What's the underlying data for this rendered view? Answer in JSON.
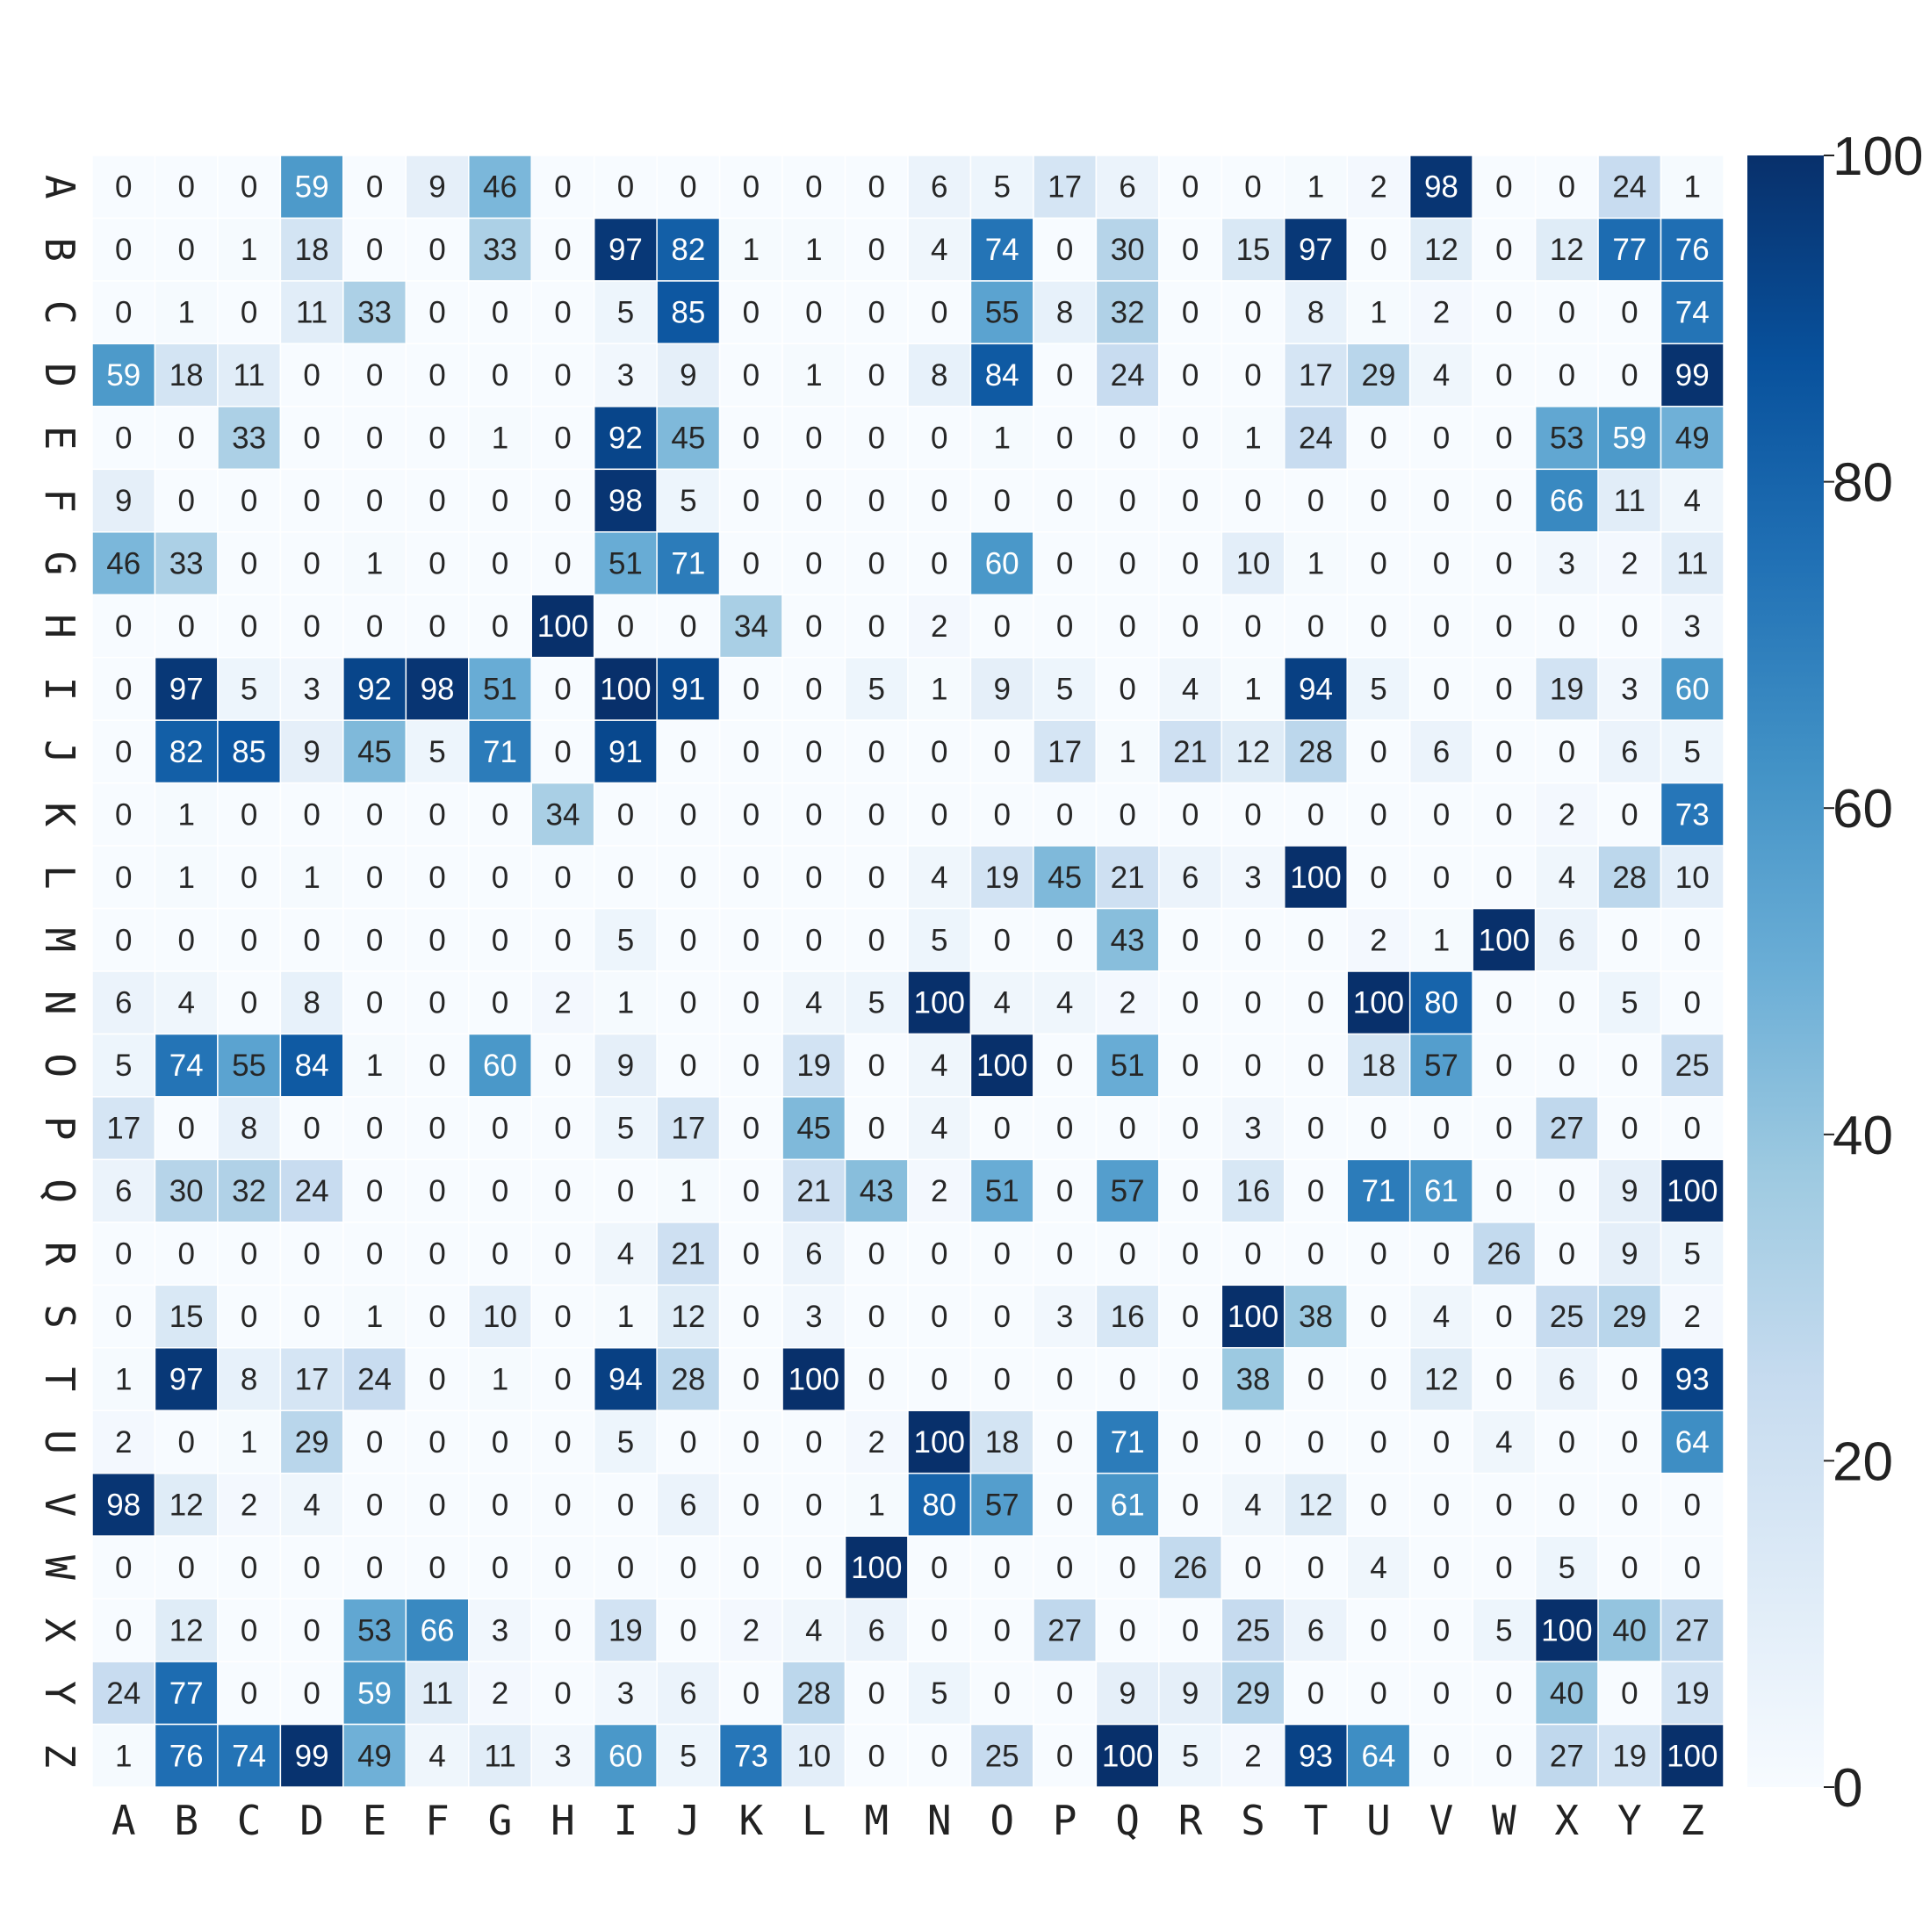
{
  "chart_data": {
    "type": "heatmap",
    "title": "",
    "xlabel": "",
    "ylabel": "",
    "x_categories": [
      "A",
      "B",
      "C",
      "D",
      "E",
      "F",
      "G",
      "H",
      "I",
      "J",
      "K",
      "L",
      "M",
      "N",
      "O",
      "P",
      "Q",
      "R",
      "S",
      "T",
      "U",
      "V",
      "W",
      "X",
      "Y",
      "Z"
    ],
    "y_categories": [
      "A",
      "B",
      "C",
      "D",
      "E",
      "F",
      "G",
      "H",
      "I",
      "J",
      "K",
      "L",
      "M",
      "N",
      "O",
      "P",
      "Q",
      "R",
      "S",
      "T",
      "U",
      "V",
      "W",
      "X",
      "Y",
      "Z"
    ],
    "values": [
      [
        0,
        0,
        0,
        59,
        0,
        9,
        46,
        0,
        0,
        0,
        0,
        0,
        0,
        6,
        5,
        17,
        6,
        0,
        0,
        1,
        2,
        98,
        0,
        0,
        24,
        1
      ],
      [
        0,
        0,
        1,
        18,
        0,
        0,
        33,
        0,
        97,
        82,
        1,
        1,
        0,
        4,
        74,
        0,
        30,
        0,
        15,
        97,
        0,
        12,
        0,
        12,
        77,
        76
      ],
      [
        0,
        1,
        0,
        11,
        33,
        0,
        0,
        0,
        5,
        85,
        0,
        0,
        0,
        0,
        55,
        8,
        32,
        0,
        0,
        8,
        1,
        2,
        0,
        0,
        0,
        74
      ],
      [
        59,
        18,
        11,
        0,
        0,
        0,
        0,
        0,
        3,
        9,
        0,
        1,
        0,
        8,
        84,
        0,
        24,
        0,
        0,
        17,
        29,
        4,
        0,
        0,
        0,
        99
      ],
      [
        0,
        0,
        33,
        0,
        0,
        0,
        1,
        0,
        92,
        45,
        0,
        0,
        0,
        0,
        1,
        0,
        0,
        0,
        1,
        24,
        0,
        0,
        0,
        53,
        59,
        49
      ],
      [
        9,
        0,
        0,
        0,
        0,
        0,
        0,
        0,
        98,
        5,
        0,
        0,
        0,
        0,
        0,
        0,
        0,
        0,
        0,
        0,
        0,
        0,
        0,
        66,
        11,
        4
      ],
      [
        46,
        33,
        0,
        0,
        1,
        0,
        0,
        0,
        51,
        71,
        0,
        0,
        0,
        0,
        60,
        0,
        0,
        0,
        10,
        1,
        0,
        0,
        0,
        3,
        2,
        11
      ],
      [
        0,
        0,
        0,
        0,
        0,
        0,
        0,
        100,
        0,
        0,
        34,
        0,
        0,
        2,
        0,
        0,
        0,
        0,
        0,
        0,
        0,
        0,
        0,
        0,
        0,
        3
      ],
      [
        0,
        97,
        5,
        3,
        92,
        98,
        51,
        0,
        100,
        91,
        0,
        0,
        5,
        1,
        9,
        5,
        0,
        4,
        1,
        94,
        5,
        0,
        0,
        19,
        3,
        60
      ],
      [
        0,
        82,
        85,
        9,
        45,
        5,
        71,
        0,
        91,
        0,
        0,
        0,
        0,
        0,
        0,
        17,
        1,
        21,
        12,
        28,
        0,
        6,
        0,
        0,
        6,
        5
      ],
      [
        0,
        1,
        0,
        0,
        0,
        0,
        0,
        34,
        0,
        0,
        0,
        0,
        0,
        0,
        0,
        0,
        0,
        0,
        0,
        0,
        0,
        0,
        0,
        2,
        0,
        73
      ],
      [
        0,
        1,
        0,
        1,
        0,
        0,
        0,
        0,
        0,
        0,
        0,
        0,
        0,
        4,
        19,
        45,
        21,
        6,
        3,
        100,
        0,
        0,
        0,
        4,
        28,
        10
      ],
      [
        0,
        0,
        0,
        0,
        0,
        0,
        0,
        0,
        5,
        0,
        0,
        0,
        0,
        5,
        0,
        0,
        43,
        0,
        0,
        0,
        2,
        1,
        100,
        6,
        0,
        0
      ],
      [
        6,
        4,
        0,
        8,
        0,
        0,
        0,
        2,
        1,
        0,
        0,
        4,
        5,
        100,
        4,
        4,
        2,
        0,
        0,
        0,
        100,
        80,
        0,
        0,
        5,
        0
      ],
      [
        5,
        74,
        55,
        84,
        1,
        0,
        60,
        0,
        9,
        0,
        0,
        19,
        0,
        4,
        100,
        0,
        51,
        0,
        0,
        0,
        18,
        57,
        0,
        0,
        0,
        25
      ],
      [
        17,
        0,
        8,
        0,
        0,
        0,
        0,
        0,
        5,
        17,
        0,
        45,
        0,
        4,
        0,
        0,
        0,
        0,
        3,
        0,
        0,
        0,
        0,
        27,
        0,
        0
      ],
      [
        6,
        30,
        32,
        24,
        0,
        0,
        0,
        0,
        0,
        1,
        0,
        21,
        43,
        2,
        51,
        0,
        57,
        0,
        16,
        0,
        71,
        61,
        0,
        0,
        9,
        100
      ],
      [
        0,
        0,
        0,
        0,
        0,
        0,
        0,
        0,
        4,
        21,
        0,
        6,
        0,
        0,
        0,
        0,
        0,
        0,
        0,
        0,
        0,
        0,
        26,
        0,
        9,
        5
      ],
      [
        0,
        15,
        0,
        0,
        1,
        0,
        10,
        0,
        1,
        12,
        0,
        3,
        0,
        0,
        0,
        3,
        16,
        0,
        100,
        38,
        0,
        4,
        0,
        25,
        29,
        2
      ],
      [
        1,
        97,
        8,
        17,
        24,
        0,
        1,
        0,
        94,
        28,
        0,
        100,
        0,
        0,
        0,
        0,
        0,
        0,
        38,
        0,
        0,
        12,
        0,
        6,
        0,
        93
      ],
      [
        2,
        0,
        1,
        29,
        0,
        0,
        0,
        0,
        5,
        0,
        0,
        0,
        2,
        100,
        18,
        0,
        71,
        0,
        0,
        0,
        0,
        0,
        4,
        0,
        0,
        64
      ],
      [
        98,
        12,
        2,
        4,
        0,
        0,
        0,
        0,
        0,
        6,
        0,
        0,
        1,
        80,
        57,
        0,
        61,
        0,
        4,
        12,
        0,
        0,
        0,
        0,
        0,
        0
      ],
      [
        0,
        0,
        0,
        0,
        0,
        0,
        0,
        0,
        0,
        0,
        0,
        0,
        100,
        0,
        0,
        0,
        0,
        26,
        0,
        0,
        4,
        0,
        0,
        5,
        0,
        0
      ],
      [
        0,
        12,
        0,
        0,
        53,
        66,
        3,
        0,
        19,
        0,
        2,
        4,
        6,
        0,
        0,
        27,
        0,
        0,
        25,
        6,
        0,
        0,
        5,
        100,
        40,
        27
      ],
      [
        24,
        77,
        0,
        0,
        59,
        11,
        2,
        0,
        3,
        6,
        0,
        28,
        0,
        5,
        0,
        0,
        9,
        9,
        29,
        0,
        0,
        0,
        0,
        40,
        0,
        19
      ],
      [
        1,
        76,
        74,
        99,
        49,
        4,
        11,
        3,
        60,
        5,
        73,
        10,
        0,
        0,
        25,
        0,
        100,
        5,
        2,
        93,
        64,
        0,
        0,
        27,
        19,
        100
      ]
    ],
    "value_range": [
      0,
      100
    ],
    "colormap": "Blues",
    "colormap_stops": [
      "#f7fbff",
      "#deebf7",
      "#c6dbef",
      "#9ecae1",
      "#6baed6",
      "#4292c6",
      "#2171b5",
      "#08519c",
      "#08306b"
    ],
    "colorbar": {
      "placement": "right",
      "ticks": [
        0,
        20,
        40,
        60,
        80,
        100
      ],
      "tick_labels": [
        "0",
        "20",
        "40",
        "60",
        "80",
        "100"
      ]
    },
    "annotations": "cell values",
    "grid": false
  }
}
